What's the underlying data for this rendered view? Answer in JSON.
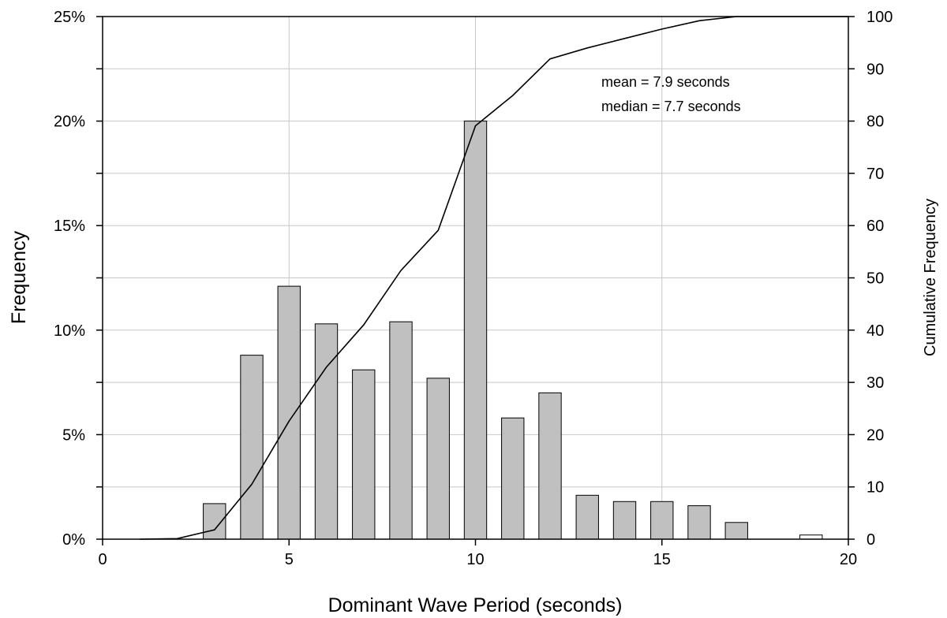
{
  "chart_data": {
    "type": "bar",
    "title": "",
    "xlabel": "Dominant Wave Period (seconds)",
    "ylabel": "Frequency",
    "y2label": "Cumulative Frequency",
    "xlim": [
      0,
      20
    ],
    "ylim": [
      0,
      25
    ],
    "y2lim": [
      0,
      100
    ],
    "x_ticks": [
      "0",
      "5",
      "10",
      "15",
      "20"
    ],
    "y_ticks": [
      "0%",
      "5%",
      "10%",
      "15%",
      "20%",
      "25%"
    ],
    "y2_ticks": [
      "0",
      "10",
      "20",
      "30",
      "40",
      "50",
      "60",
      "70",
      "80",
      "90",
      "100"
    ],
    "grid": true,
    "bar_color": "#c0c0c0",
    "series": [
      {
        "type": "bar",
        "axis": "left",
        "x": [
          3,
          4,
          5,
          6,
          7,
          8,
          9,
          10,
          11,
          12,
          13,
          14,
          15,
          16,
          17,
          19
        ],
        "values": [
          1.7,
          8.8,
          12.1,
          10.3,
          8.1,
          10.4,
          7.7,
          20.0,
          5.8,
          7.0,
          2.1,
          1.8,
          1.8,
          1.6,
          0.8,
          0.2
        ]
      },
      {
        "type": "line",
        "axis": "right",
        "x": [
          1,
          2,
          3,
          4,
          5,
          6,
          7,
          8,
          9,
          10,
          11,
          12,
          13,
          14,
          15,
          16,
          17,
          18,
          19,
          20
        ],
        "values": [
          0,
          0.1,
          1.8,
          10.5,
          22.6,
          32.9,
          41.0,
          51.4,
          59.1,
          79.1,
          84.9,
          91.9,
          94.0,
          95.8,
          97.6,
          99.2,
          100.0,
          100.0,
          100.0,
          100.0
        ]
      }
    ],
    "annotations": [
      "mean = 7.9 seconds",
      "median = 7.7 seconds"
    ]
  }
}
